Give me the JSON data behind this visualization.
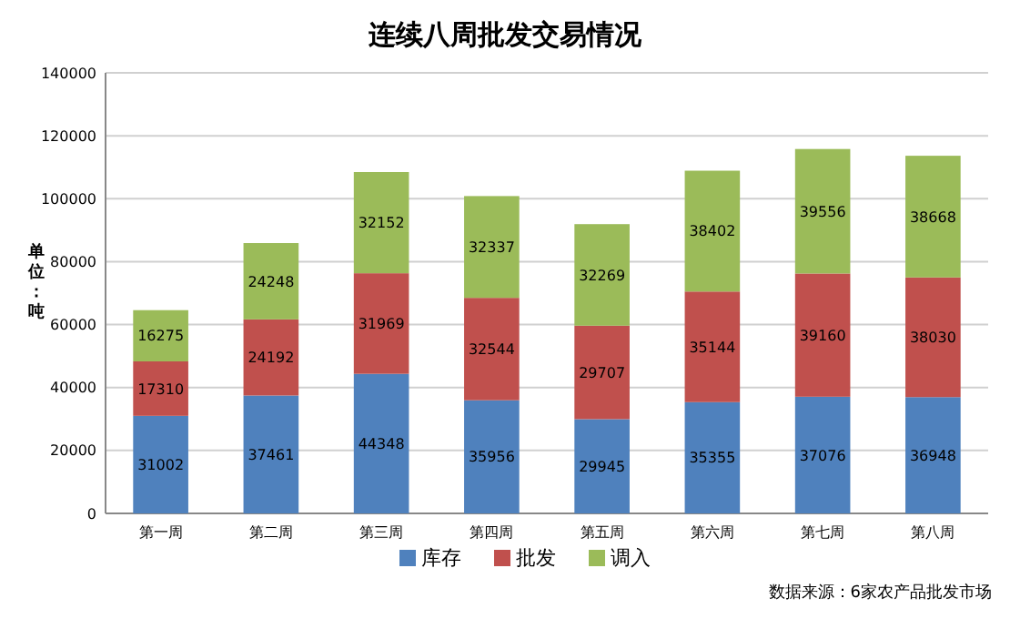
{
  "chart_data": {
    "type": "bar",
    "title": "连续八周批发交易情况",
    "ylabel": "单位：吨",
    "categories": [
      "第一周",
      "第二周",
      "第三周",
      "第四周",
      "第五周",
      "第六周",
      "第七周",
      "第八周"
    ],
    "stacked": true,
    "series": [
      {
        "name": "库存",
        "color": "#4f81bd",
        "values": [
          31002,
          37461,
          44348,
          35956,
          29945,
          35355,
          37076,
          36948
        ]
      },
      {
        "name": "批发",
        "color": "#c0504d",
        "values": [
          17310,
          24192,
          31969,
          32544,
          29707,
          35144,
          39160,
          38030
        ]
      },
      {
        "name": "调入",
        "color": "#9bbb59",
        "values": [
          16275,
          24248,
          32152,
          32337,
          32269,
          38402,
          39556,
          38668
        ]
      }
    ],
    "ylim": [
      0,
      140000
    ],
    "yticks": [
      0,
      20000,
      40000,
      60000,
      80000,
      100000,
      120000,
      140000
    ],
    "grid": "y",
    "legend": "bottom",
    "data_labels": true,
    "annotations": [
      "数据来源：6家农产品批发市场"
    ]
  }
}
